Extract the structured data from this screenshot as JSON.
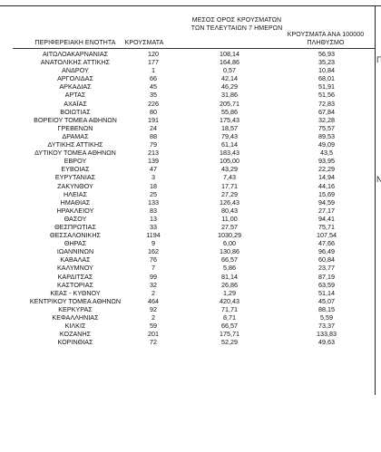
{
  "table": {
    "headers": {
      "region": "ΠΕΡΙΦΕΡΕΙΑΚΗ ΕΝΟΤΗΤΑ",
      "cases": "ΚΡΟΥΣΜΑΤΑ",
      "avg7": "ΜΕΣΟΣ ΟΡΟΣ ΚΡΟΥΣΜΑΤΩΝ ΤΩΝ ΤΕΛΕΥΤΑΙΩΝ 7 ΗΜΕΡΩΝ",
      "per100k": "ΚΡΟΥΣΜΑΤΑ ΑΝΑ 100000 ΠΛΗΘΥΣΜΟ"
    },
    "rows": [
      {
        "region": "ΑΙΤΩΛΟΑΚΑΡΝΑΝΙΑΣ",
        "cases": "120",
        "avg7": "108,14",
        "per100k": "56,93"
      },
      {
        "region": "ΑΝΑΤΟΛΙΚΗΣ ΑΤΤΙΚΗΣ",
        "cases": "177",
        "avg7": "164,86",
        "per100k": "35,23"
      },
      {
        "region": "ΑΝΔΡΟΥ",
        "cases": "1",
        "avg7": "0,57",
        "per100k": "10,84"
      },
      {
        "region": "ΑΡΓΟΛΙΔΑΣ",
        "cases": "66",
        "avg7": "42,14",
        "per100k": "68,01"
      },
      {
        "region": "ΑΡΚΑΔΙΑΣ",
        "cases": "45",
        "avg7": "46,29",
        "per100k": "51,91"
      },
      {
        "region": "ΑΡΤΑΣ",
        "cases": "35",
        "avg7": "31,86",
        "per100k": "51,56"
      },
      {
        "region": "ΑΧΑΪΑΣ",
        "cases": "226",
        "avg7": "205,71",
        "per100k": "72,83"
      },
      {
        "region": "ΒΟΙΩΤΙΑΣ",
        "cases": "80",
        "avg7": "55,86",
        "per100k": "67,84"
      },
      {
        "region": "ΒΟΡΕΙΟΥ ΤΟΜΕΑ ΑΘΗΝΩΝ",
        "cases": "191",
        "avg7": "175,43",
        "per100k": "32,28"
      },
      {
        "region": "ΓΡΕΒΕΝΩΝ",
        "cases": "24",
        "avg7": "18,57",
        "per100k": "75,57"
      },
      {
        "region": "ΔΡΑΜΑΣ",
        "cases": "88",
        "avg7": "79,43",
        "per100k": "89,53"
      },
      {
        "region": "ΔΥΤΙΚΗΣ ΑΤΤΙΚΗΣ",
        "cases": "79",
        "avg7": "61,14",
        "per100k": "49,09"
      },
      {
        "region": "ΔΥΤΙΚΟΥ ΤΟΜΕΑ ΑΘΗΝΩΝ",
        "cases": "213",
        "avg7": "183,43",
        "per100k": "43,5"
      },
      {
        "region": "ΕΒΡΟΥ",
        "cases": "139",
        "avg7": "105,00",
        "per100k": "93,95"
      },
      {
        "region": "ΕΥΒΟΙΑΣ",
        "cases": "47",
        "avg7": "43,29",
        "per100k": "22,29"
      },
      {
        "region": "ΕΥΡΥΤΑΝΙΑΣ",
        "cases": "3",
        "avg7": "7,43",
        "per100k": "14,94"
      },
      {
        "region": "ΖΑΚΥΝΘΟΥ",
        "cases": "18",
        "avg7": "17,71",
        "per100k": "44,16"
      },
      {
        "region": "ΗΛΕΙΑΣ",
        "cases": "25",
        "avg7": "27,29",
        "per100k": "15,69"
      },
      {
        "region": "ΗΜΑΘΙΑΣ",
        "cases": "133",
        "avg7": "126,43",
        "per100k": "94,59"
      },
      {
        "region": "ΗΡΑΚΛΕΙΟΥ",
        "cases": "83",
        "avg7": "80,43",
        "per100k": "27,17"
      },
      {
        "region": "ΘΑΣΟΥ",
        "cases": "13",
        "avg7": "11,00",
        "per100k": "94,41"
      },
      {
        "region": "ΘΕΣΠΡΩΤΙΑΣ",
        "cases": "33",
        "avg7": "27,57",
        "per100k": "75,71"
      },
      {
        "region": "ΘΕΣΣΑΛΟΝΙΚΗΣ",
        "cases": "1194",
        "avg7": "1030,29",
        "per100k": "107,54"
      },
      {
        "region": "ΘΗΡΑΣ",
        "cases": "9",
        "avg7": "6,00",
        "per100k": "47,66"
      },
      {
        "region": "ΙΩΑΝΝΙΝΩΝ",
        "cases": "162",
        "avg7": "130,86",
        "per100k": "96,49"
      },
      {
        "region": "ΚΑΒΑΛΑΣ",
        "cases": "76",
        "avg7": "66,57",
        "per100k": "60,84"
      },
      {
        "region": "ΚΑΛΥΜΝΟΥ",
        "cases": "7",
        "avg7": "5,86",
        "per100k": "23,77"
      },
      {
        "region": "ΚΑΡΔΙΤΣΑΣ",
        "cases": "99",
        "avg7": "81,14",
        "per100k": "87,19"
      },
      {
        "region": "ΚΑΣΤΟΡΙΑΣ",
        "cases": "32",
        "avg7": "26,86",
        "per100k": "63,59"
      },
      {
        "region": "ΚΕΑΣ - ΚΥΘΝΟΥ",
        "cases": "2",
        "avg7": "1,29",
        "per100k": "51,14"
      },
      {
        "region": "ΚΕΝΤΡΙΚΟΥ ΤΟΜΕΑ ΑΘΗΝΩΝ",
        "cases": "464",
        "avg7": "420,43",
        "per100k": "45,07"
      },
      {
        "region": "ΚΕΡΚΥΡΑΣ",
        "cases": "92",
        "avg7": "71,71",
        "per100k": "88,15"
      },
      {
        "region": "ΚΕΦΑΛΛΗΝΙΑΣ",
        "cases": "2",
        "avg7": "8,71",
        "per100k": "5,59"
      },
      {
        "region": "ΚΙΛΚΙΣ",
        "cases": "59",
        "avg7": "66,57",
        "per100k": "73,37"
      },
      {
        "region": "ΚΟΖΑΝΗΣ",
        "cases": "201",
        "avg7": "175,71",
        "per100k": "133,83"
      },
      {
        "region": "ΚΟΡΙΝΘΙΑΣ",
        "cases": "72",
        "avg7": "52,29",
        "per100k": "49,63"
      }
    ]
  },
  "cut_column": {
    "letter_top": "Π",
    "letter_mid": "Ν"
  }
}
